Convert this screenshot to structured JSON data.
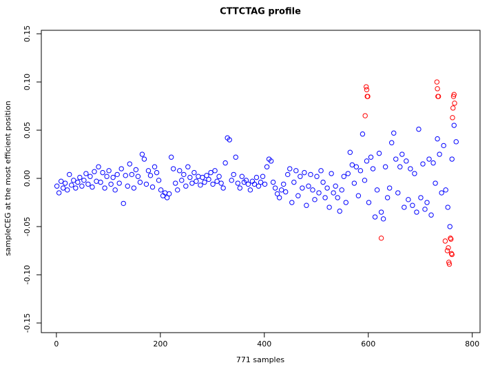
{
  "chart_data": {
    "type": "scatter",
    "title": "CTTCTAG profile",
    "x_label": "771 samples",
    "y_label": "sampleCEG at the most efficient position",
    "xlim": [
      -29,
      815
    ],
    "xticks": [
      0,
      200,
      400,
      600,
      800
    ],
    "ylim": [
      -0.16,
      0.1536
    ],
    "yticks": [
      -0.15,
      {
        "value": -0.1,
        "label": "-0.10"
      },
      -0.05,
      {
        "value": 0,
        "label": "0.00"
      },
      0.05,
      {
        "value": 0.1,
        "label": "0.10"
      },
      0.15
    ],
    "series": [
      {
        "color": "#0000ff",
        "x": [
          1,
          5,
          9,
          13,
          17,
          21,
          25,
          29,
          33,
          37,
          41,
          45,
          49,
          53,
          57,
          61,
          65,
          69,
          73,
          77,
          81,
          85,
          89,
          93,
          97,
          101,
          105,
          109,
          113,
          117,
          121,
          125,
          129,
          133,
          137,
          141,
          145,
          149,
          153,
          157,
          161,
          165,
          169,
          173,
          177,
          181,
          185,
          189,
          193,
          197,
          201,
          205,
          209,
          213,
          217,
          221,
          225,
          229,
          233,
          237,
          241,
          245,
          249,
          253,
          257,
          261,
          265,
          269,
          273,
          277,
          281,
          285,
          289,
          293,
          297,
          301,
          305,
          309,
          313,
          317,
          321,
          325,
          329,
          333,
          337,
          341,
          345,
          349,
          353,
          357,
          361,
          365,
          369,
          373,
          377,
          381,
          385,
          389,
          393,
          397,
          401,
          405,
          409,
          413,
          417,
          421,
          425,
          429,
          433,
          437,
          441,
          445,
          449,
          453,
          457,
          461,
          465,
          469,
          473,
          477,
          481,
          485,
          489,
          493,
          497,
          501,
          505,
          509,
          513,
          517,
          521,
          525,
          529,
          533,
          537,
          541,
          545,
          549,
          553,
          557,
          561,
          565,
          569,
          573,
          577,
          581,
          585,
          589,
          593,
          597,
          601,
          605,
          609,
          613,
          617,
          621,
          625,
          629,
          633,
          637,
          641,
          645,
          649,
          653,
          657,
          661,
          665,
          669,
          673,
          677,
          681,
          685,
          689,
          693,
          697,
          701,
          705,
          709,
          713,
          717,
          721,
          725,
          729,
          733,
          737,
          741,
          745,
          749,
          753,
          757,
          761,
          765,
          769
        ],
        "values": [
          -0.008,
          -0.015,
          -0.003,
          -0.01,
          -0.005,
          -0.012,
          0.004,
          -0.007,
          -0.002,
          -0.01,
          -0.004,
          0.001,
          -0.008,
          -0.002,
          0.005,
          -0.006,
          0.002,
          -0.009,
          0.007,
          -0.003,
          0.012,
          -0.004,
          0.006,
          -0.01,
          0.002,
          0.008,
          -0.006,
          0.001,
          -0.012,
          0.004,
          -0.005,
          0.01,
          -0.026,
          0.003,
          -0.008,
          0.015,
          0.004,
          -0.01,
          0.009,
          0.002,
          -0.004,
          0.025,
          0.02,
          -0.006,
          0.008,
          0.003,
          -0.009,
          0.012,
          0.006,
          -0.002,
          -0.012,
          -0.018,
          -0.015,
          -0.02,
          -0.016,
          0.022,
          0.01,
          -0.005,
          -0.012,
          0.008,
          -0.002,
          0.004,
          -0.008,
          0.012,
          0.001,
          -0.005,
          0.006,
          -0.003,
          0.002,
          -0.007,
          0.001,
          -0.004,
          0.003,
          -0.001,
          0.006,
          -0.006,
          0.008,
          -0.003,
          0.002,
          -0.005,
          -0.01,
          0.016,
          0.042,
          0.04,
          -0.002,
          0.004,
          0.022,
          -0.005,
          -0.01,
          0.002,
          -0.004,
          -0.002,
          -0.006,
          -0.012,
          -0.003,
          -0.006,
          0.001,
          -0.008,
          -0.004,
          0.002,
          -0.006,
          0.012,
          0.02,
          0.018,
          -0.004,
          -0.01,
          -0.016,
          -0.02,
          -0.012,
          -0.006,
          -0.014,
          0.004,
          0.01,
          -0.025,
          -0.004,
          0.008,
          -0.018,
          0.002,
          -0.01,
          0.006,
          -0.028,
          -0.008,
          0.004,
          -0.012,
          -0.022,
          0.002,
          -0.015,
          0.008,
          -0.004,
          -0.02,
          -0.01,
          -0.03,
          0.005,
          -0.015,
          -0.008,
          -0.02,
          -0.034,
          -0.012,
          0.002,
          -0.025,
          0.005,
          0.027,
          0.014,
          -0.005,
          0.012,
          -0.018,
          0.008,
          0.046,
          -0.002,
          0.018,
          -0.025,
          0.022,
          0.01,
          -0.04,
          -0.012,
          0.026,
          -0.035,
          -0.042,
          0.012,
          -0.02,
          -0.01,
          0.037,
          0.047,
          0.02,
          -0.015,
          0.012,
          0.025,
          -0.03,
          0.018,
          -0.022,
          0.01,
          -0.028,
          0.005,
          -0.035,
          0.051,
          -0.02,
          0.015,
          -0.032,
          -0.025,
          0.02,
          -0.038,
          0.016,
          -0.005,
          0.041,
          0.025,
          -0.015,
          0.034,
          -0.012,
          -0.03,
          -0.05,
          0.02,
          0.055,
          0.038
        ]
      },
      {
        "color": "#ff0000",
        "x": [
          594,
          596,
          597,
          598,
          599,
          625,
          732,
          733,
          734,
          735,
          748,
          752,
          754,
          755,
          756,
          758,
          759,
          760,
          761,
          762,
          763,
          764,
          765,
          766
        ],
        "values": [
          0.065,
          0.095,
          0.092,
          0.085,
          0.085,
          -0.062,
          0.1,
          0.093,
          0.085,
          0.085,
          -0.065,
          -0.075,
          -0.072,
          -0.087,
          -0.089,
          -0.062,
          -0.063,
          -0.078,
          -0.079,
          0.063,
          0.073,
          0.085,
          0.087,
          0.078
        ]
      }
    ]
  }
}
